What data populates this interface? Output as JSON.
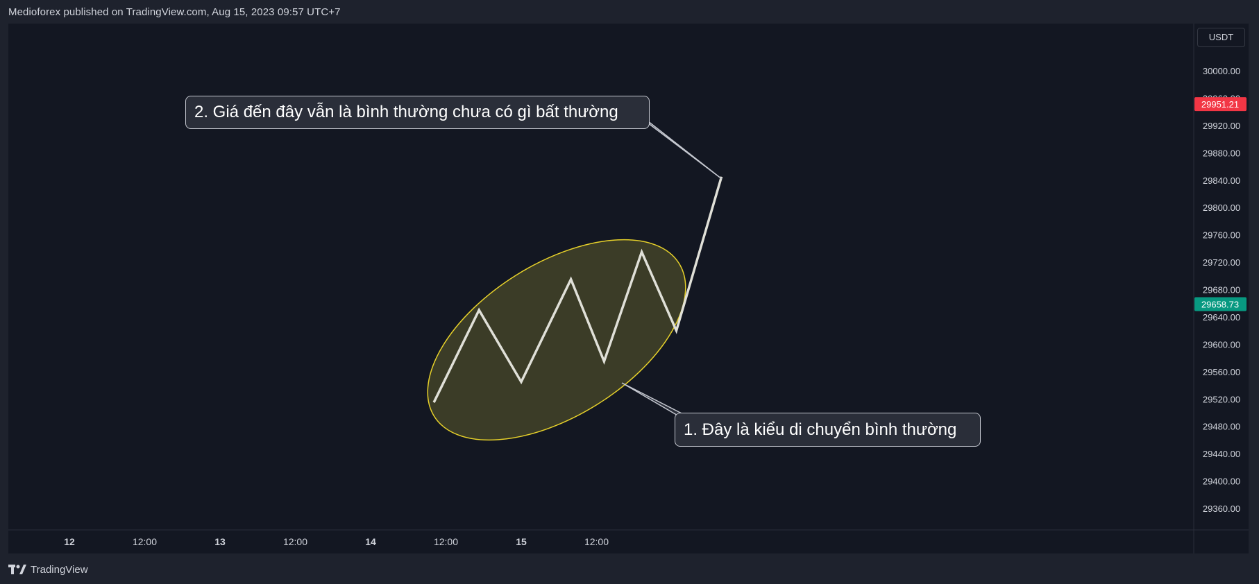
{
  "header": {
    "published_text": "Medioforex published on TradingView.com, Aug 15, 2023 09:57 UTC+7"
  },
  "footer": {
    "brand": "TradingView"
  },
  "currency_button": "USDT",
  "price_badges": {
    "upper": {
      "value": "29951.21",
      "color": "#f23645"
    },
    "lower": {
      "value": "29658.73",
      "color": "#089981"
    }
  },
  "annotations": {
    "callout_1": "1. Đây là kiểu di chuyển bình thường",
    "callout_2": "2. Giá đến đây vẫn là bình thường chưa có gì bất thường"
  },
  "colors": {
    "background": "#131722",
    "line": "#e0e0d8",
    "ellipse_stroke": "#e8d22a",
    "ellipse_fill": "#4a4a2a",
    "axis_text": "#d1d4dc"
  },
  "chart_data": {
    "type": "line",
    "y_axis_ticks": [
      "30000.00",
      "29960.00",
      "29920.00",
      "29880.00",
      "29840.00",
      "29800.00",
      "29760.00",
      "29720.00",
      "29680.00",
      "29640.00",
      "29600.00",
      "29560.00",
      "29520.00",
      "29480.00",
      "29440.00",
      "29400.00",
      "29360.00"
    ],
    "x_axis_ticks": [
      {
        "label": "12",
        "bold": true,
        "day": 12.0
      },
      {
        "label": "12:00",
        "bold": false,
        "day": 12.5
      },
      {
        "label": "13",
        "bold": true,
        "day": 13.0
      },
      {
        "label": "12:00",
        "bold": false,
        "day": 13.5
      },
      {
        "label": "14",
        "bold": true,
        "day": 14.0
      },
      {
        "label": "12:00",
        "bold": false,
        "day": 14.5
      },
      {
        "label": "15",
        "bold": true,
        "day": 15.0
      },
      {
        "label": "12:00",
        "bold": false,
        "day": 15.5
      }
    ],
    "ylim": [
      29320,
      30040
    ],
    "series": [
      {
        "points": [
          {
            "x": 14.42,
            "y": 29515
          },
          {
            "x": 14.72,
            "y": 29650
          },
          {
            "x": 15.0,
            "y": 29545
          },
          {
            "x": 15.33,
            "y": 29695
          },
          {
            "x": 15.55,
            "y": 29575
          },
          {
            "x": 15.8,
            "y": 29735
          },
          {
            "x": 16.03,
            "y": 29620
          },
          {
            "x": 16.33,
            "y": 29845
          }
        ]
      }
    ]
  }
}
